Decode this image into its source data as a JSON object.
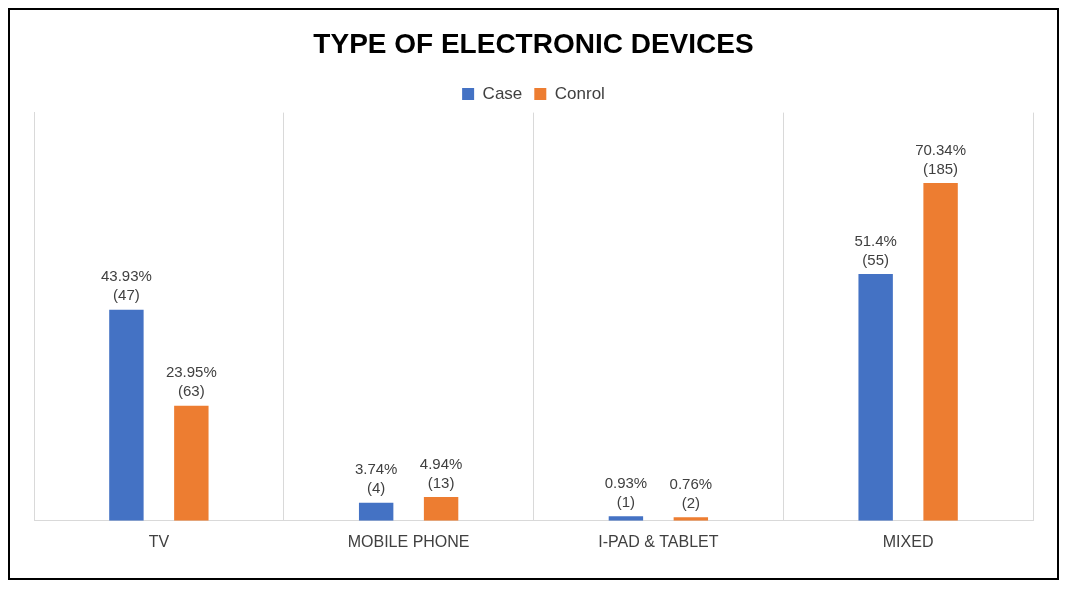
{
  "chart_data": {
    "type": "bar",
    "title": "TYPE OF ELECTRONIC DEVICES",
    "categories": [
      "TV",
      "MOBILE PHONE",
      "I-PAD & TABLET",
      "MIXED"
    ],
    "series": [
      {
        "name": "Case",
        "color": "#4472c4",
        "values": [
          43.93,
          3.74,
          0.93,
          51.4
        ],
        "value_labels": [
          [
            "43.93%",
            "(47)"
          ],
          [
            "3.74%",
            "(4)"
          ],
          [
            "0.93%",
            "(1)"
          ],
          [
            "51.4%",
            "(55)"
          ]
        ]
      },
      {
        "name": "Conrol",
        "color": "#ed7d31",
        "values": [
          23.95,
          4.94,
          0.76,
          70.34
        ],
        "value_labels": [
          [
            "23.95%",
            "(63)"
          ],
          [
            "4.94%",
            "(13)"
          ],
          [
            "0.76%",
            "(2)"
          ],
          [
            "70.34%",
            "(185)"
          ]
        ]
      }
    ],
    "ylim": [
      0,
      85
    ],
    "legend": "top",
    "grid": true,
    "data_labels": true,
    "tick_labels": "x"
  }
}
